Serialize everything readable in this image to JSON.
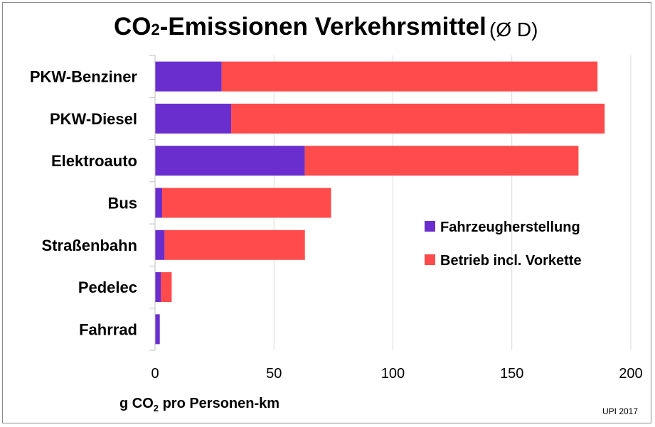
{
  "chart_data": {
    "type": "bar",
    "orientation": "horizontal",
    "stacked": true,
    "title": "CO₂-Emissionen Verkehrsmittel",
    "title_parts": {
      "pre": "CO",
      "sub": "2",
      "post": "-Emissionen Verkehrsmittel"
    },
    "title_note": "(Ø D)",
    "categories": [
      "PKW-Benziner",
      "PKW-Diesel",
      "Elektroauto",
      "Bus",
      "Straßenbahn",
      "Pedelec",
      "Fahrrad"
    ],
    "series": [
      {
        "name": "Fahrzeugherstellung",
        "color": "#6a2ecf",
        "values": [
          28,
          32,
          63,
          3,
          4,
          2.5,
          2
        ]
      },
      {
        "name": "Betrieb incl. Vorkette",
        "color": "#ff4b4b",
        "values": [
          158,
          157,
          115,
          71,
          59,
          4.5,
          0
        ]
      }
    ],
    "xlabel": "g CO₂ pro Personen-km",
    "xlabel_parts": {
      "pre": "g CO",
      "sub": "2",
      "post": " pro Personen-km"
    },
    "xlim": [
      0,
      200
    ],
    "xticks": [
      0,
      50,
      100,
      150,
      200
    ],
    "grid": true,
    "legend": "center-right",
    "source": "UPI 2017"
  }
}
